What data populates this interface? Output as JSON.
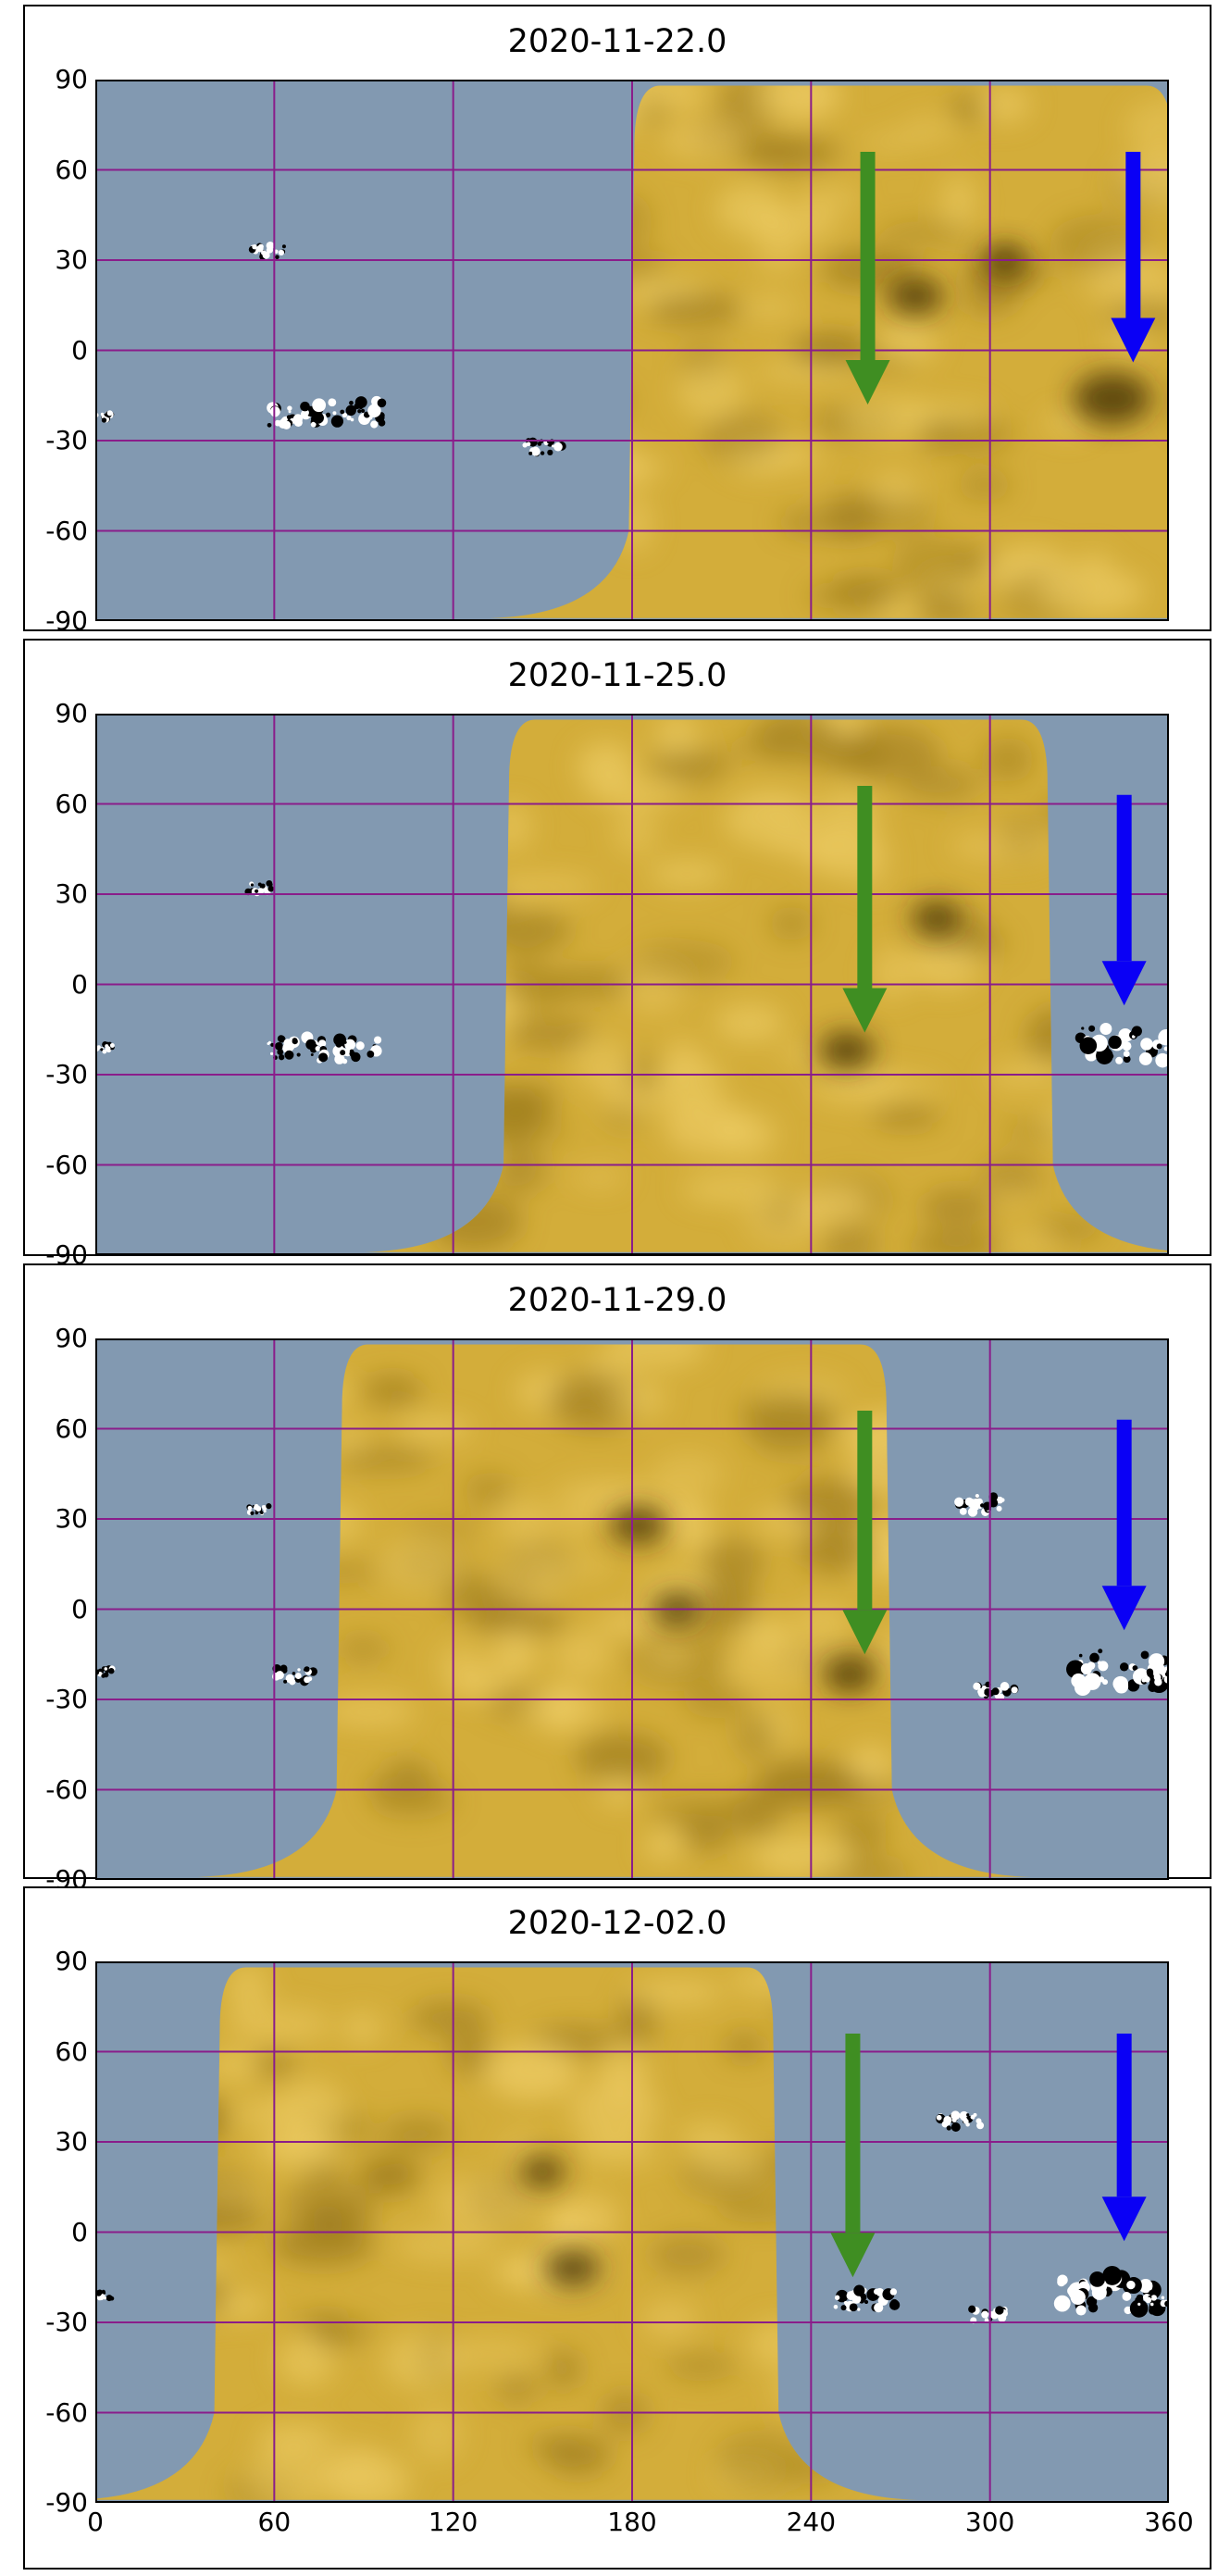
{
  "figure": {
    "panels": [
      {
        "title": "2020-11-22.0",
        "farside_range": [
          182,
          360
        ],
        "green_arrow": {
          "lon": 259,
          "lat_top": 66,
          "lat_tip": -18
        },
        "blue_arrow": {
          "lon": 348,
          "lat_top": 66,
          "lat_tip": -4
        },
        "active_regions": [
          {
            "lon": 58,
            "lat": 33,
            "size": 0.6
          },
          {
            "lon": 67,
            "lat": -22,
            "size": 1.0
          },
          {
            "lon": 85,
            "lat": -21,
            "size": 1.2
          },
          {
            "lon": 150,
            "lat": -32,
            "size": 0.7
          },
          {
            "lon": 2,
            "lat": -22,
            "size": 0.4
          }
        ],
        "dark_spots": [
          {
            "lon": 341,
            "lat": -16,
            "size": 1.4
          },
          {
            "lon": 275,
            "lat": 18,
            "size": 1.0
          },
          {
            "lon": 305,
            "lat": 30,
            "size": 0.8
          }
        ]
      },
      {
        "title": "2020-11-25.0",
        "farside_range": [
          140,
          318
        ],
        "green_arrow": {
          "lon": 258,
          "lat_top": 66,
          "lat_tip": -16
        },
        "blue_arrow": {
          "lon": 345,
          "lat_top": 63,
          "lat_tip": -7
        },
        "active_regions": [
          {
            "lon": 55,
            "lat": 32,
            "size": 0.5
          },
          {
            "lon": 67,
            "lat": -21,
            "size": 1.0
          },
          {
            "lon": 85,
            "lat": -22,
            "size": 1.1
          },
          {
            "lon": 2,
            "lat": -21,
            "size": 0.4
          },
          {
            "lon": 345,
            "lat": -20,
            "size": 1.6
          }
        ],
        "dark_spots": [
          {
            "lon": 252,
            "lat": -22,
            "size": 1.0
          },
          {
            "lon": 282,
            "lat": 22,
            "size": 0.9
          }
        ]
      },
      {
        "title": "2020-11-29.0",
        "farside_range": [
          84,
          264
        ],
        "green_arrow": {
          "lon": 258,
          "lat_top": 66,
          "lat_tip": -15
        },
        "blue_arrow": {
          "lon": 345,
          "lat_top": 63,
          "lat_tip": -7
        },
        "active_regions": [
          {
            "lon": 55,
            "lat": 33,
            "size": 0.4
          },
          {
            "lon": 67,
            "lat": -22,
            "size": 0.7
          },
          {
            "lon": 2,
            "lat": -21,
            "size": 0.4
          },
          {
            "lon": 297,
            "lat": 35,
            "size": 0.8
          },
          {
            "lon": 302,
            "lat": -27,
            "size": 0.7
          },
          {
            "lon": 345,
            "lat": -20,
            "size": 1.8
          },
          {
            "lon": 357,
            "lat": -22,
            "size": 0.6
          }
        ],
        "dark_spots": [
          {
            "lon": 253,
            "lat": -22,
            "size": 0.9
          },
          {
            "lon": 182,
            "lat": 28,
            "size": 1.0
          },
          {
            "lon": 195,
            "lat": 0,
            "size": 0.9
          }
        ]
      },
      {
        "title": "2020-12-02.0",
        "farside_range": [
          43,
          226
        ],
        "green_arrow": {
          "lon": 254,
          "lat_top": 66,
          "lat_tip": -15
        },
        "blue_arrow": {
          "lon": 345,
          "lat_top": 66,
          "lat_tip": -3
        },
        "active_regions": [
          {
            "lon": 2,
            "lat": -21,
            "size": 0.4
          },
          {
            "lon": 258,
            "lat": -23,
            "size": 1.1
          },
          {
            "lon": 290,
            "lat": 37,
            "size": 0.8
          },
          {
            "lon": 300,
            "lat": -27,
            "size": 0.7
          },
          {
            "lon": 340,
            "lat": -20,
            "size": 1.8
          },
          {
            "lon": 355,
            "lat": -22,
            "size": 0.6
          }
        ],
        "dark_spots": [
          {
            "lon": 160,
            "lat": -12,
            "size": 1.0
          },
          {
            "lon": 150,
            "lat": 20,
            "size": 0.8
          }
        ]
      }
    ],
    "axes": {
      "x_ticks": [
        "0",
        "60",
        "120",
        "180",
        "240",
        "300",
        "360"
      ],
      "y_ticks": [
        "90",
        "60",
        "30",
        "0",
        "-30",
        "-60",
        "-90"
      ],
      "x_range": [
        0,
        360
      ],
      "y_range": [
        -90,
        90
      ]
    },
    "colors": {
      "nearside_background": "#8299b1",
      "farside_map": "#d3ad3a",
      "grid_lines": "#8a1d8a",
      "green_arrow": "#3f8e22",
      "blue_arrow": "#0a00f5"
    }
  }
}
